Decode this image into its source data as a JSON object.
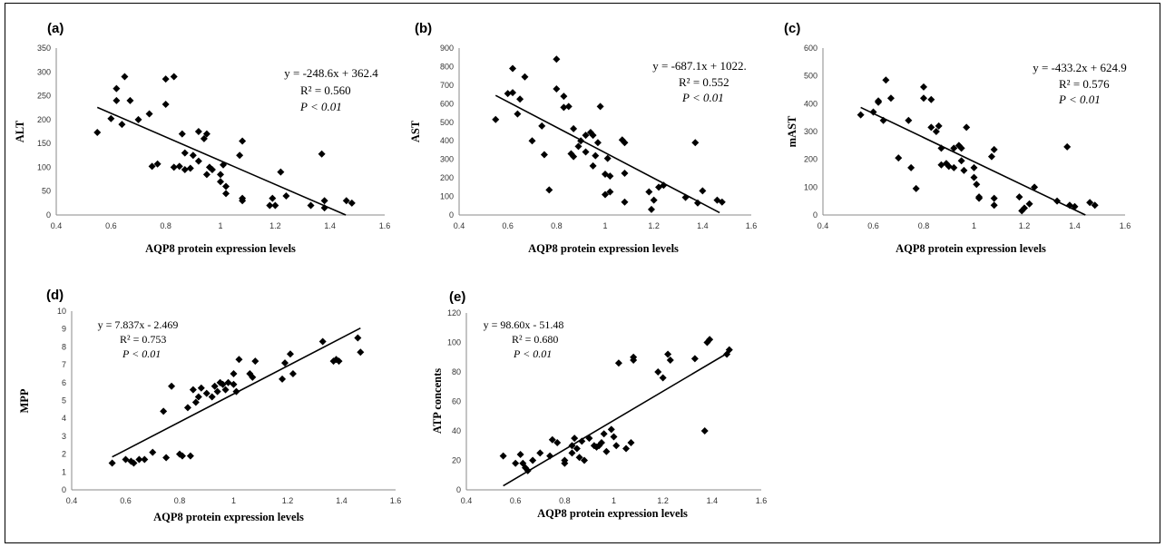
{
  "chart_data": [
    {
      "label": "(a)",
      "type": "scatter",
      "xlabel": "AQP8 protein expression levels",
      "ylabel": "ALT",
      "xlim": [
        0.4,
        1.6
      ],
      "ylim": [
        0,
        350
      ],
      "xticks": [
        "0.4",
        "0.6",
        "0.8",
        "1",
        "1.2",
        "1.4",
        "1.6"
      ],
      "yticks": [
        "0",
        "50",
        "100",
        "150",
        "200",
        "250",
        "300",
        "350"
      ],
      "annotation": [
        "y = -248.6x + 362.4",
        "R² = 0.560",
        "P < 0.01"
      ],
      "trendline": {
        "slope": -248.6,
        "intercept": 362.4
      },
      "points": [
        [
          0.55,
          173
        ],
        [
          0.6,
          202
        ],
        [
          0.62,
          240
        ],
        [
          0.62,
          265
        ],
        [
          0.64,
          190
        ],
        [
          0.65,
          290
        ],
        [
          0.67,
          240
        ],
        [
          0.7,
          200
        ],
        [
          0.74,
          212
        ],
        [
          0.75,
          102
        ],
        [
          0.77,
          107
        ],
        [
          0.8,
          285
        ],
        [
          0.8,
          232
        ],
        [
          0.83,
          290
        ],
        [
          0.83,
          100
        ],
        [
          0.85,
          102
        ],
        [
          0.86,
          170
        ],
        [
          0.87,
          130
        ],
        [
          0.87,
          95
        ],
        [
          0.89,
          98
        ],
        [
          0.9,
          125
        ],
        [
          0.92,
          175
        ],
        [
          0.92,
          113
        ],
        [
          0.94,
          160
        ],
        [
          0.95,
          170
        ],
        [
          0.95,
          85
        ],
        [
          0.96,
          100
        ],
        [
          0.97,
          95
        ],
        [
          1.0,
          85
        ],
        [
          1.0,
          70
        ],
        [
          1.01,
          105
        ],
        [
          1.02,
          60
        ],
        [
          1.02,
          45
        ],
        [
          1.07,
          125
        ],
        [
          1.08,
          155
        ],
        [
          1.08,
          35
        ],
        [
          1.08,
          30
        ],
        [
          1.18,
          20
        ],
        [
          1.19,
          35
        ],
        [
          1.2,
          20
        ],
        [
          1.22,
          90
        ],
        [
          1.24,
          40
        ],
        [
          1.33,
          20
        ],
        [
          1.37,
          128
        ],
        [
          1.38,
          30
        ],
        [
          1.38,
          15
        ],
        [
          1.46,
          30
        ],
        [
          1.48,
          25
        ]
      ]
    },
    {
      "label": "(b)",
      "type": "scatter",
      "xlabel": "AQP8 protein expression levels",
      "ylabel": "AST",
      "xlim": [
        0.4,
        1.6
      ],
      "ylim": [
        0,
        900
      ],
      "xticks": [
        "0.4",
        "0.6",
        "0.8",
        "1",
        "1.2",
        "1.4",
        "1.6"
      ],
      "yticks": [
        "0",
        "100",
        "200",
        "300",
        "400",
        "500",
        "600",
        "700",
        "800",
        "900"
      ],
      "annotation": [
        "y = -687.1x + 1022.",
        "R² = 0.552",
        "P < 0.01"
      ],
      "trendline": {
        "slope": -687.1,
        "intercept": 1022.6
      },
      "points": [
        [
          0.55,
          515
        ],
        [
          0.6,
          655
        ],
        [
          0.62,
          790
        ],
        [
          0.62,
          660
        ],
        [
          0.64,
          545
        ],
        [
          0.65,
          625
        ],
        [
          0.67,
          745
        ],
        [
          0.7,
          400
        ],
        [
          0.74,
          480
        ],
        [
          0.75,
          325
        ],
        [
          0.77,
          135
        ],
        [
          0.8,
          840
        ],
        [
          0.8,
          680
        ],
        [
          0.83,
          580
        ],
        [
          0.83,
          640
        ],
        [
          0.85,
          585
        ],
        [
          0.86,
          330
        ],
        [
          0.87,
          465
        ],
        [
          0.87,
          315
        ],
        [
          0.89,
          370
        ],
        [
          0.9,
          400
        ],
        [
          0.92,
          430
        ],
        [
          0.92,
          340
        ],
        [
          0.94,
          445
        ],
        [
          0.95,
          265
        ],
        [
          0.95,
          430
        ],
        [
          0.96,
          320
        ],
        [
          0.97,
          390
        ],
        [
          0.98,
          585
        ],
        [
          1.0,
          220
        ],
        [
          1.0,
          110
        ],
        [
          1.01,
          305
        ],
        [
          1.02,
          125
        ],
        [
          1.02,
          210
        ],
        [
          1.07,
          405
        ],
        [
          1.08,
          390
        ],
        [
          1.08,
          225
        ],
        [
          1.08,
          70
        ],
        [
          1.18,
          125
        ],
        [
          1.19,
          30
        ],
        [
          1.2,
          80
        ],
        [
          1.22,
          150
        ],
        [
          1.24,
          160
        ],
        [
          1.33,
          95
        ],
        [
          1.37,
          390
        ],
        [
          1.38,
          65
        ],
        [
          1.4,
          130
        ],
        [
          1.46,
          80
        ],
        [
          1.48,
          70
        ]
      ]
    },
    {
      "label": "(c)",
      "type": "scatter",
      "xlabel": "AQP8 protein expression levels",
      "ylabel": "mAST",
      "xlim": [
        0.4,
        1.6
      ],
      "ylim": [
        0,
        600
      ],
      "xticks": [
        "0.4",
        "0.6",
        "0.8",
        "1",
        "1.2",
        "1.4",
        "1.6"
      ],
      "yticks": [
        "0",
        "100",
        "200",
        "300",
        "400",
        "500",
        "600"
      ],
      "annotation": [
        "y = -433.2x + 624.9",
        "R² = 0.576",
        "P < 0.01"
      ],
      "trendline": {
        "slope": -433.2,
        "intercept": 624.9
      },
      "points": [
        [
          0.55,
          360
        ],
        [
          0.6,
          370
        ],
        [
          0.62,
          410
        ],
        [
          0.62,
          405
        ],
        [
          0.64,
          340
        ],
        [
          0.65,
          485
        ],
        [
          0.67,
          420
        ],
        [
          0.7,
          205
        ],
        [
          0.74,
          340
        ],
        [
          0.75,
          170
        ],
        [
          0.77,
          95
        ],
        [
          0.8,
          460
        ],
        [
          0.8,
          420
        ],
        [
          0.83,
          315
        ],
        [
          0.83,
          415
        ],
        [
          0.85,
          300
        ],
        [
          0.86,
          320
        ],
        [
          0.87,
          240
        ],
        [
          0.87,
          180
        ],
        [
          0.89,
          185
        ],
        [
          0.9,
          175
        ],
        [
          0.92,
          240
        ],
        [
          0.92,
          170
        ],
        [
          0.94,
          250
        ],
        [
          0.95,
          240
        ],
        [
          0.95,
          195
        ],
        [
          0.96,
          160
        ],
        [
          0.97,
          315
        ],
        [
          1.0,
          170
        ],
        [
          1.0,
          135
        ],
        [
          1.01,
          110
        ],
        [
          1.02,
          60
        ],
        [
          1.02,
          65
        ],
        [
          1.07,
          210
        ],
        [
          1.08,
          235
        ],
        [
          1.08,
          60
        ],
        [
          1.08,
          35
        ],
        [
          1.18,
          65
        ],
        [
          1.19,
          15
        ],
        [
          1.2,
          25
        ],
        [
          1.22,
          40
        ],
        [
          1.24,
          100
        ],
        [
          1.33,
          50
        ],
        [
          1.37,
          245
        ],
        [
          1.38,
          35
        ],
        [
          1.4,
          30
        ],
        [
          1.46,
          45
        ],
        [
          1.48,
          35
        ]
      ]
    },
    {
      "label": "(d)",
      "type": "scatter",
      "xlabel": "AQP8 protein expression levels",
      "ylabel": "MPP",
      "xlim": [
        0.4,
        1.6
      ],
      "ylim": [
        0,
        10
      ],
      "xticks": [
        "0.4",
        "0.6",
        "0.8",
        "1",
        "1.2",
        "1.4",
        "1.6"
      ],
      "yticks": [
        "0",
        "1",
        "2",
        "3",
        "4",
        "5",
        "6",
        "7",
        "8",
        "9",
        "10"
      ],
      "annotation": [
        "y = 7.837x - 2.469",
        "R² = 0.753",
        "P < 0.01"
      ],
      "trendline": {
        "slope": 7.837,
        "intercept": -2.469
      },
      "points": [
        [
          0.55,
          1.5
        ],
        [
          0.6,
          1.7
        ],
        [
          0.62,
          1.6
        ],
        [
          0.63,
          1.5
        ],
        [
          0.65,
          1.7
        ],
        [
          0.67,
          1.7
        ],
        [
          0.7,
          2.1
        ],
        [
          0.74,
          4.4
        ],
        [
          0.75,
          1.8
        ],
        [
          0.77,
          5.8
        ],
        [
          0.8,
          2.0
        ],
        [
          0.81,
          1.9
        ],
        [
          0.83,
          4.6
        ],
        [
          0.84,
          1.9
        ],
        [
          0.85,
          5.6
        ],
        [
          0.86,
          4.9
        ],
        [
          0.87,
          5.2
        ],
        [
          0.88,
          5.7
        ],
        [
          0.9,
          5.4
        ],
        [
          0.92,
          5.2
        ],
        [
          0.93,
          5.8
        ],
        [
          0.94,
          5.5
        ],
        [
          0.95,
          6.0
        ],
        [
          0.96,
          5.9
        ],
        [
          0.97,
          5.6
        ],
        [
          0.98,
          6.0
        ],
        [
          1.0,
          6.5
        ],
        [
          1.0,
          5.9
        ],
        [
          1.01,
          5.5
        ],
        [
          1.02,
          7.3
        ],
        [
          1.06,
          6.5
        ],
        [
          1.07,
          6.3
        ],
        [
          1.08,
          7.2
        ],
        [
          1.18,
          6.2
        ],
        [
          1.19,
          7.1
        ],
        [
          1.21,
          7.6
        ],
        [
          1.22,
          6.5
        ],
        [
          1.33,
          8.3
        ],
        [
          1.37,
          7.2
        ],
        [
          1.38,
          7.3
        ],
        [
          1.39,
          7.2
        ],
        [
          1.46,
          8.5
        ],
        [
          1.47,
          7.7
        ]
      ]
    },
    {
      "label": "(e)",
      "type": "scatter",
      "xlabel": "AQP8 protein expression levels",
      "ylabel": "ATP concents",
      "xlim": [
        0.4,
        1.6
      ],
      "ylim": [
        0,
        120
      ],
      "xticks": [
        "0.4",
        "0.6",
        "0.8",
        "1",
        "1.2",
        "1.4",
        "1.6"
      ],
      "yticks": [
        "0",
        "20",
        "40",
        "60",
        "80",
        "100",
        "120"
      ],
      "annotation": [
        "y = 98.60x - 51.48",
        "R² = 0.680",
        "P < 0.01"
      ],
      "trendline": {
        "slope": 98.6,
        "intercept": -51.48
      },
      "points": [
        [
          0.55,
          23
        ],
        [
          0.6,
          18
        ],
        [
          0.62,
          24
        ],
        [
          0.63,
          18
        ],
        [
          0.64,
          15
        ],
        [
          0.65,
          13
        ],
        [
          0.67,
          20
        ],
        [
          0.7,
          25
        ],
        [
          0.74,
          23
        ],
        [
          0.75,
          34
        ],
        [
          0.77,
          32
        ],
        [
          0.8,
          20
        ],
        [
          0.8,
          18
        ],
        [
          0.83,
          30
        ],
        [
          0.83,
          25
        ],
        [
          0.84,
          35
        ],
        [
          0.85,
          28
        ],
        [
          0.86,
          22
        ],
        [
          0.87,
          33
        ],
        [
          0.88,
          20
        ],
        [
          0.9,
          35
        ],
        [
          0.92,
          30
        ],
        [
          0.93,
          29
        ],
        [
          0.94,
          30
        ],
        [
          0.95,
          32
        ],
        [
          0.96,
          38
        ],
        [
          0.97,
          26
        ],
        [
          0.99,
          41
        ],
        [
          1.0,
          36
        ],
        [
          1.01,
          30
        ],
        [
          1.02,
          86
        ],
        [
          1.05,
          28
        ],
        [
          1.07,
          32
        ],
        [
          1.08,
          88
        ],
        [
          1.08,
          90
        ],
        [
          1.18,
          80
        ],
        [
          1.2,
          76
        ],
        [
          1.22,
          92
        ],
        [
          1.23,
          88
        ],
        [
          1.33,
          89
        ],
        [
          1.37,
          40
        ],
        [
          1.38,
          100
        ],
        [
          1.39,
          102
        ],
        [
          1.46,
          92
        ],
        [
          1.47,
          95
        ]
      ]
    }
  ]
}
